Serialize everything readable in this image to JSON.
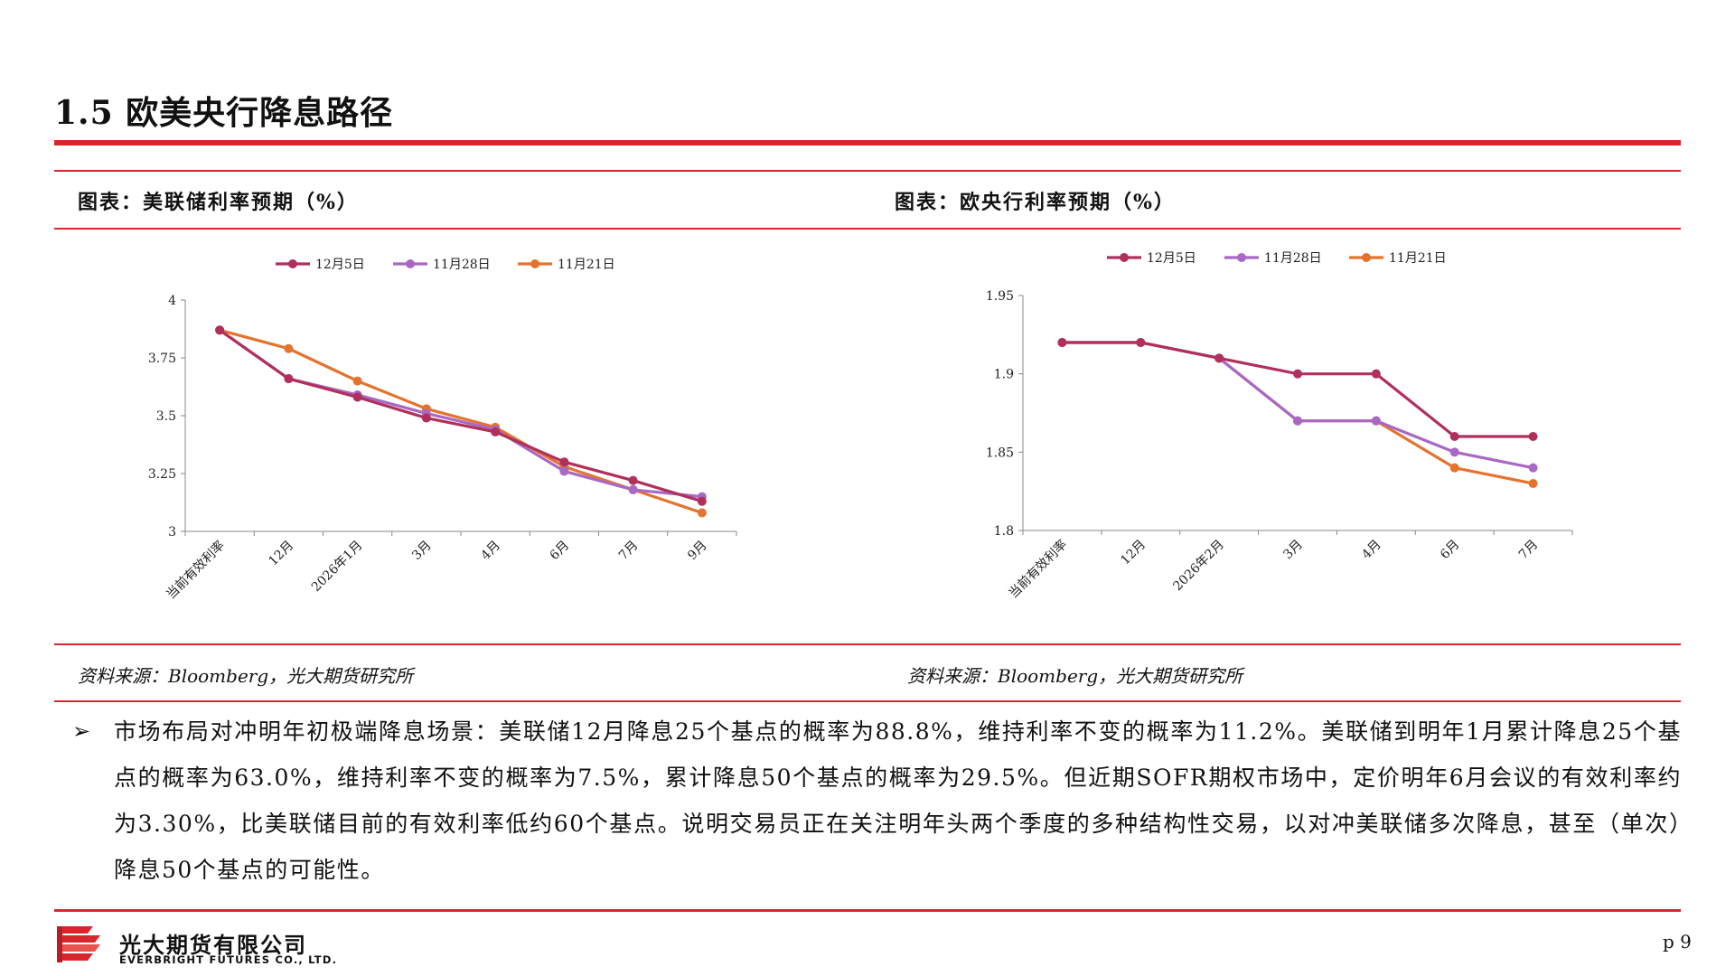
{
  "page": {
    "title": "1.5 欧美央行降息路径",
    "page_number": "p 9"
  },
  "charts": [
    {
      "caption": "图表：美联储利率预期（%）",
      "source": "资料来源：Bloomberg，光大期货研究所"
    },
    {
      "caption": "图表：欧央行利率预期（%）",
      "source": "资料来源：Bloomberg，光大期货研究所"
    }
  ],
  "chart_data": [
    {
      "type": "line",
      "title": "",
      "categories": [
        "当前有效利率",
        "12月",
        "2026年1月",
        "3月",
        "4月",
        "6月",
        "7月",
        "9月"
      ],
      "series": [
        {
          "name": "12月5日",
          "color": "#b0305a",
          "values": [
            3.87,
            3.66,
            3.58,
            3.49,
            3.43,
            3.3,
            3.22,
            3.13
          ]
        },
        {
          "name": "11月28日",
          "color": "#a868c4",
          "values": [
            3.87,
            3.66,
            3.59,
            3.51,
            3.44,
            3.26,
            3.18,
            3.15
          ]
        },
        {
          "name": "11月21日",
          "color": "#e5732e",
          "values": [
            3.87,
            3.79,
            3.65,
            3.53,
            3.45,
            3.28,
            3.18,
            3.08
          ]
        }
      ],
      "yticks": [
        "3",
        "3.25",
        "3.5",
        "3.75",
        "4"
      ],
      "ylim": [
        3,
        4
      ],
      "legend": "top",
      "grid": false
    },
    {
      "type": "line",
      "title": "",
      "categories": [
        "当前有效利率",
        "12月",
        "2026年2月",
        "3月",
        "4月",
        "6月",
        "7月"
      ],
      "series": [
        {
          "name": "12月5日",
          "color": "#b0305a",
          "values": [
            1.92,
            1.92,
            1.91,
            1.9,
            1.9,
            1.86,
            1.86
          ]
        },
        {
          "name": "11月28日",
          "color": "#a868c4",
          "values": [
            1.92,
            1.92,
            1.91,
            1.87,
            1.87,
            1.85,
            1.84
          ]
        },
        {
          "name": "11月21日",
          "color": "#e5732e",
          "values": [
            1.92,
            1.92,
            1.91,
            1.87,
            1.87,
            1.84,
            1.83
          ]
        }
      ],
      "yticks": [
        "1.8",
        "1.85",
        "1.9",
        "1.95"
      ],
      "ylim": [
        1.8,
        1.95
      ],
      "legend": "top",
      "grid": false
    }
  ],
  "body": {
    "paragraph": "市场布局对冲明年初极端降息场景：美联储12月降息25个基点的概率为88.8%，维持利率不变的概率为11.2%。美联储到明年1月累计降息25个基点的概率为63.0%，维持利率不变的概率为7.5%，累计降息50个基点的概率为29.5%。但近期SOFR期权市场中，定价明年6月会议的有效利率约为3.30%，比美联储目前的有效利率低约60个基点。说明交易员正在关注明年头两个季度的多种结构性交易，以对冲美联储多次降息，甚至（单次）降息50个基点的可能性。"
  },
  "footer": {
    "company_cn": "光大期货有限公司",
    "company_en": "EVERBRIGHT FUTURES CO., LTD.",
    "brand_color": "#d7262e"
  }
}
